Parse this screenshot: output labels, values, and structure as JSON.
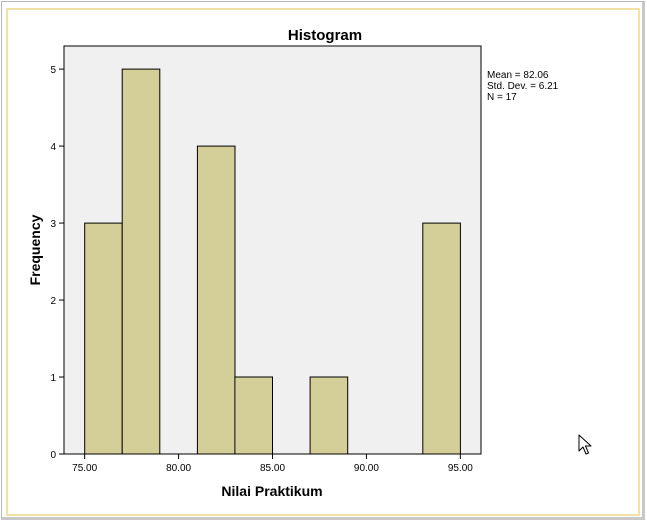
{
  "chart_data": {
    "type": "bar",
    "title": "Histogram",
    "xlabel": "Nilai Praktikum",
    "ylabel": "Frequency",
    "bins": [
      {
        "start": 75.0,
        "end": 77.0,
        "count": 3
      },
      {
        "start": 77.0,
        "end": 79.0,
        "count": 5
      },
      {
        "start": 79.0,
        "end": 81.0,
        "count": 0
      },
      {
        "start": 81.0,
        "end": 83.0,
        "count": 4
      },
      {
        "start": 83.0,
        "end": 85.0,
        "count": 1
      },
      {
        "start": 85.0,
        "end": 87.0,
        "count": 0
      },
      {
        "start": 87.0,
        "end": 89.0,
        "count": 1
      },
      {
        "start": 89.0,
        "end": 91.0,
        "count": 0
      },
      {
        "start": 91.0,
        "end": 93.0,
        "count": 0
      },
      {
        "start": 93.0,
        "end": 95.0,
        "count": 3
      }
    ],
    "xlim": [
      73.9,
      96.1
    ],
    "ylim": [
      0,
      5.3
    ],
    "x_ticks": [
      75.0,
      80.0,
      85.0,
      90.0,
      95.0
    ],
    "x_tick_labels": [
      "75.00",
      "80.00",
      "85.00",
      "90.00",
      "95.00"
    ],
    "y_ticks": [
      0,
      1,
      2,
      3,
      4,
      5
    ],
    "y_tick_labels": [
      "0",
      "1",
      "2",
      "3",
      "4",
      "5"
    ],
    "stats": {
      "mean_label": "Mean = 82.06",
      "std_label": "Std. Dev. = 6.21",
      "n_label": "N = 17"
    },
    "grid": false,
    "legend": "none",
    "bar_color": "#d4cf99",
    "plot_background": "#f0f0f0"
  },
  "cursor": {
    "icon": "arrow-cursor-icon"
  }
}
